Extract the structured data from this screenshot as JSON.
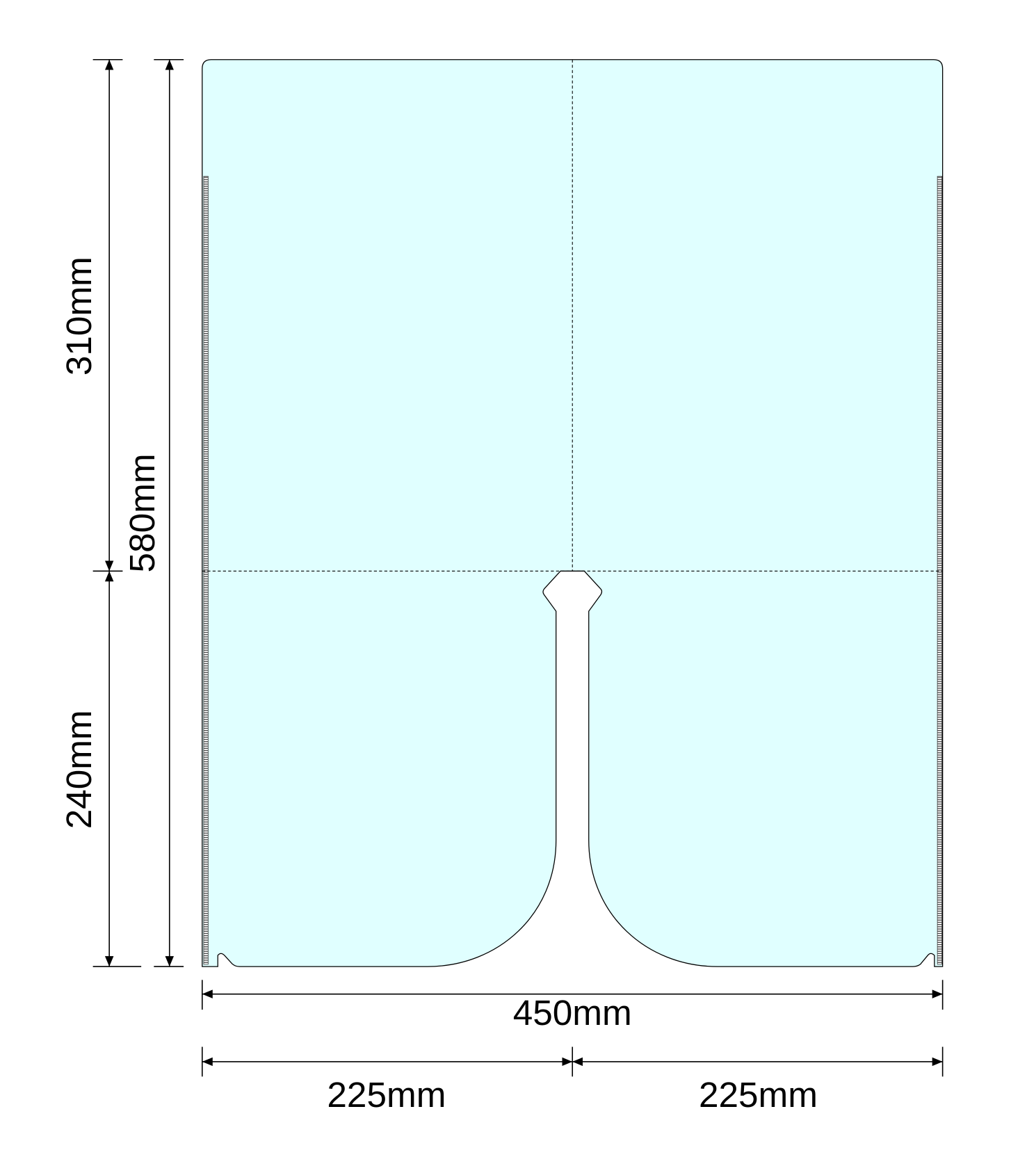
{
  "dimensions": {
    "height_top": "310mm",
    "height_total": "580mm",
    "height_bottom": "240mm",
    "width_total": "450mm",
    "width_left": "225mm",
    "width_right": "225mm"
  }
}
